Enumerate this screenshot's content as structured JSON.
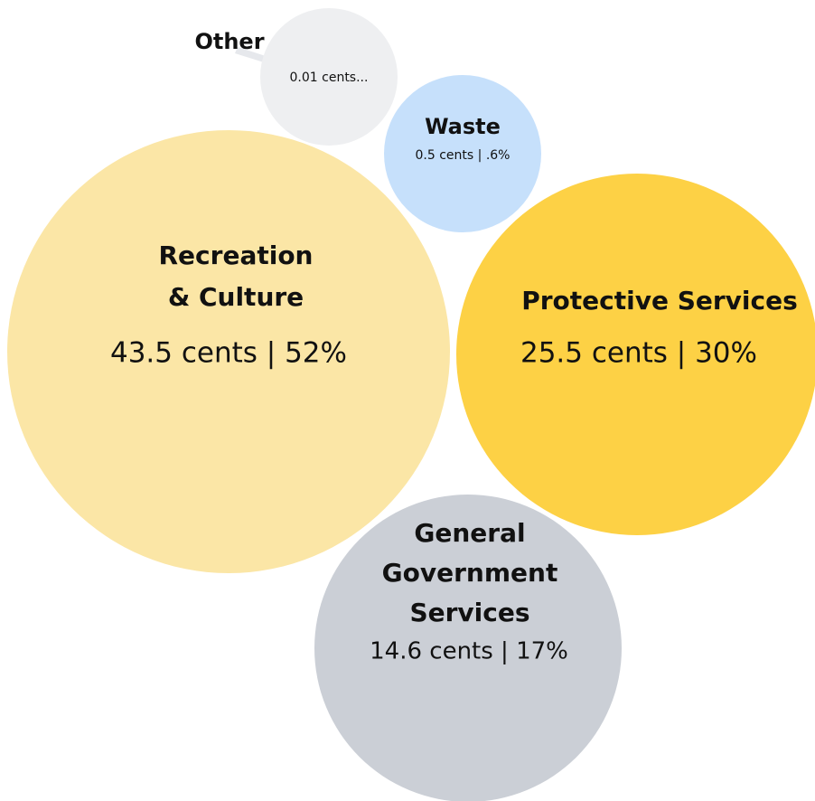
{
  "chart_data": {
    "type": "bubble",
    "unit": "cents",
    "items": [
      {
        "name": "Recreation & Culture",
        "name_lines": [
          "Recreation",
          "& Culture"
        ],
        "value": 43.5,
        "percent": 52,
        "value_label": "43.5 cents | 52%",
        "color": "#fbe6a6"
      },
      {
        "name": "Protective Services",
        "name_lines": [
          "Protective Services"
        ],
        "value": 25.5,
        "percent": 30,
        "value_label": "25.5 cents | 30%",
        "color": "#fdd145"
      },
      {
        "name": "General Government Services",
        "name_lines": [
          "General",
          "Government",
          "Services"
        ],
        "value": 14.6,
        "percent": 17,
        "value_label": "14.6 cents | 17%",
        "color": "#cbcfd6"
      },
      {
        "name": "Waste",
        "name_lines": [
          "Waste"
        ],
        "value": 0.5,
        "percent_text": ".6%",
        "value_label": "0.5 cents | .6%",
        "color": "#c6e0fb"
      },
      {
        "name": "Other",
        "name_lines": [
          "Other"
        ],
        "value": 0.01,
        "value_label": "0.01 cents...",
        "color": "#eeeff1",
        "leader_color": "#e6e8ec"
      }
    ]
  }
}
